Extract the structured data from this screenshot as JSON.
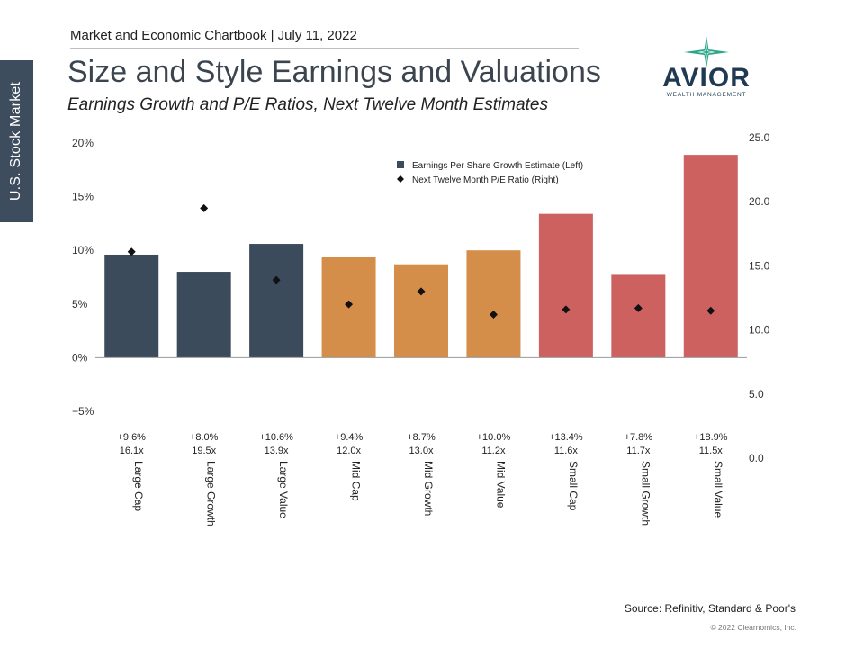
{
  "header": {
    "chartbook": "Market and Economic Chartbook | July 11, 2022",
    "title": "Size and Style Earnings and Valuations",
    "subtitle": "Earnings Growth and P/E Ratios, Next Twelve Month Estimates",
    "side_tab": "U.S. Stock Market"
  },
  "logo": {
    "name": "AVIOR",
    "tagline": "WEALTH MANAGEMENT"
  },
  "footer": {
    "source": "Source: Refinitiv, Standard & Poor's",
    "copyright": "© 2022 Clearnomics, Inc."
  },
  "colors": {
    "large": "#3b4b5b",
    "mid": "#d58d4a",
    "small": "#cd6160",
    "marker": "#111111",
    "axis": "#999999"
  },
  "chart_data": {
    "type": "bar",
    "categories": [
      "Large Cap",
      "Large Growth",
      "Large Value",
      "Mid Cap",
      "Mid Growth",
      "Mid Value",
      "Small Cap",
      "Small Growth",
      "Small Value"
    ],
    "category_groups": [
      "large",
      "large",
      "large",
      "mid",
      "mid",
      "mid",
      "small",
      "small",
      "small"
    ],
    "series": [
      {
        "name": "Earnings Per Share Growth Estimate (Left)",
        "kind": "bar",
        "axis": "left",
        "values": [
          9.6,
          8.0,
          10.6,
          9.4,
          8.7,
          10.0,
          13.4,
          7.8,
          18.9
        ],
        "labels": [
          "+9.6%",
          "+8.0%",
          "+10.6%",
          "+9.4%",
          "+8.7%",
          "+10.0%",
          "+13.4%",
          "+7.8%",
          "+18.9%"
        ]
      },
      {
        "name": "Next Twelve Month P/E Ratio (Right)",
        "kind": "scatter",
        "marker": "diamond",
        "axis": "right",
        "values": [
          16.1,
          19.5,
          13.9,
          12.0,
          13.0,
          11.2,
          11.6,
          11.7,
          11.5
        ],
        "labels": [
          "16.1x",
          "19.5x",
          "13.9x",
          "12.0x",
          "13.0x",
          "11.2x",
          "11.6x",
          "11.7x",
          "11.5x"
        ]
      }
    ],
    "y_left": {
      "range": [
        -5,
        20
      ],
      "ticks": [
        20,
        15,
        10,
        5,
        0,
        -5
      ],
      "tick_labels": [
        "20%",
        "15%",
        "10%",
        "5%",
        "0%",
        "−5%"
      ]
    },
    "y_right": {
      "range": [
        0,
        25
      ],
      "ticks": [
        25,
        20,
        15,
        10,
        5,
        0
      ],
      "tick_labels": [
        "25.0",
        "20.0",
        "15.0",
        "10.0",
        "5.0",
        "0.0"
      ]
    },
    "legend_position": "top-right",
    "grid": false
  }
}
